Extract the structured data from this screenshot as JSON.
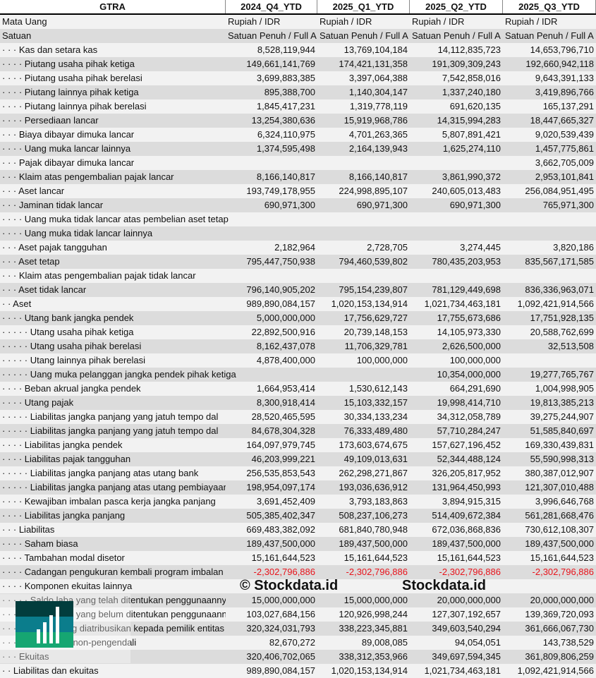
{
  "header": {
    "title": "GTRA",
    "columns": [
      "2024_Q4_YTD",
      "2025_Q1_YTD",
      "2025_Q2_YTD",
      "2025_Q3_YTD"
    ]
  },
  "meta_rows": [
    {
      "label": "Mata Uang",
      "values": [
        "Rupiah / IDR",
        "Rupiah / IDR",
        "Rupiah / IDR",
        "Rupiah / IDR"
      ]
    },
    {
      "label": "Satuan",
      "values": [
        "Satuan Penuh / Full A",
        "Satuan Penuh / Full A",
        "Satuan Penuh / Full A",
        "Satuan Penuh / Full A"
      ]
    }
  ],
  "rows": [
    {
      "label": "· · · Kas dan setara kas",
      "values": [
        "8,528,119,944",
        "13,769,104,184",
        "14,112,835,723",
        "14,653,796,710"
      ]
    },
    {
      "label": "· · · · Piutang usaha pihak ketiga",
      "values": [
        "149,661,141,769",
        "174,421,131,358",
        "191,309,309,243",
        "192,660,942,118"
      ]
    },
    {
      "label": "· · · · Piutang usaha pihak berelasi",
      "values": [
        "3,699,883,385",
        "3,397,064,388",
        "7,542,858,016",
        "9,643,391,133"
      ]
    },
    {
      "label": "· · · · Piutang lainnya pihak ketiga",
      "values": [
        "895,388,700",
        "1,140,304,147",
        "1,337,240,180",
        "3,419,896,766"
      ]
    },
    {
      "label": "· · · · Piutang lainnya pihak berelasi",
      "values": [
        "1,845,417,231",
        "1,319,778,119",
        "691,620,135",
        "165,137,291"
      ]
    },
    {
      "label": "· · · · Persediaan lancar",
      "values": [
        "13,254,380,636",
        "15,919,968,786",
        "14,315,994,283",
        "18,447,665,327"
      ]
    },
    {
      "label": "· · · Biaya dibayar dimuka lancar",
      "values": [
        "6,324,110,975",
        "4,701,263,365",
        "5,807,891,421",
        "9,020,539,439"
      ]
    },
    {
      "label": "· · · · Uang muka lancar lainnya",
      "values": [
        "1,374,595,498",
        "2,164,139,943",
        "1,625,274,110",
        "1,457,775,861"
      ]
    },
    {
      "label": "· · · Pajak dibayar dimuka lancar",
      "values": [
        "",
        "",
        "",
        "3,662,705,009"
      ]
    },
    {
      "label": "· · · Klaim atas pengembalian pajak lancar",
      "values": [
        "8,166,140,817",
        "8,166,140,817",
        "3,861,990,372",
        "2,953,101,841"
      ]
    },
    {
      "label": "· · · Aset lancar",
      "values": [
        "193,749,178,955",
        "224,998,895,107",
        "240,605,013,483",
        "256,084,951,495"
      ]
    },
    {
      "label": "· · · Jaminan tidak lancar",
      "values": [
        "690,971,300",
        "690,971,300",
        "690,971,300",
        "765,971,300"
      ]
    },
    {
      "label": "· · · · Uang muka tidak lancar atas pembelian aset tetap",
      "values": [
        "",
        "",
        "",
        ""
      ]
    },
    {
      "label": "· · · · Uang muka tidak lancar lainnya",
      "values": [
        "",
        "",
        "",
        ""
      ]
    },
    {
      "label": "· · · Aset pajak tangguhan",
      "values": [
        "2,182,964",
        "2,728,705",
        "3,274,445",
        "3,820,186"
      ]
    },
    {
      "label": "· · · Aset tetap",
      "values": [
        "795,447,750,938",
        "794,460,539,802",
        "780,435,203,953",
        "835,567,171,585"
      ]
    },
    {
      "label": "· · · Klaim atas pengembalian pajak tidak lancar",
      "values": [
        "",
        "",
        "",
        ""
      ]
    },
    {
      "label": "· · · Aset tidak lancar",
      "values": [
        "796,140,905,202",
        "795,154,239,807",
        "781,129,449,698",
        "836,336,963,071"
      ]
    },
    {
      "label": "· · Aset",
      "values": [
        "989,890,084,157",
        "1,020,153,134,914",
        "1,021,734,463,181",
        "1,092,421,914,566"
      ]
    },
    {
      "label": "· · · · Utang bank jangka pendek",
      "values": [
        "5,000,000,000",
        "17,756,629,727",
        "17,755,673,686",
        "17,751,928,135"
      ]
    },
    {
      "label": "· · · · · Utang usaha pihak ketiga",
      "values": [
        "22,892,500,916",
        "20,739,148,153",
        "14,105,973,330",
        "20,588,762,699"
      ]
    },
    {
      "label": "· · · · · Utang usaha pihak berelasi",
      "values": [
        "8,162,437,078",
        "11,706,329,781",
        "2,626,500,000",
        "32,513,508"
      ]
    },
    {
      "label": "· · · · · Utang lainnya pihak berelasi",
      "values": [
        "4,878,400,000",
        "100,000,000",
        "100,000,000",
        ""
      ]
    },
    {
      "label": "· · · · · Uang muka pelanggan jangka pendek pihak ketiga",
      "values": [
        "",
        "",
        "10,354,000,000",
        "19,277,765,767"
      ]
    },
    {
      "label": "· · · · Beban akrual jangka pendek",
      "values": [
        "1,664,953,414",
        "1,530,612,143",
        "664,291,690",
        "1,004,998,905"
      ]
    },
    {
      "label": "· · · · Utang pajak",
      "values": [
        "8,300,918,414",
        "15,103,332,157",
        "19,998,414,710",
        "19,813,385,213"
      ]
    },
    {
      "label": "· · · · · Liabilitas jangka panjang yang jatuh tempo dal",
      "values": [
        "28,520,465,595",
        "30,334,133,234",
        "34,312,058,789",
        "39,275,244,907"
      ]
    },
    {
      "label": "· · · · · Liabilitas jangka panjang yang jatuh tempo dal",
      "values": [
        "84,678,304,328",
        "76,333,489,480",
        "57,710,284,247",
        "51,585,840,697"
      ]
    },
    {
      "label": "· · · · Liabilitas jangka pendek",
      "values": [
        "164,097,979,745",
        "173,603,674,675",
        "157,627,196,452",
        "169,330,439,831"
      ]
    },
    {
      "label": "· · · · Liabilitas pajak tangguhan",
      "values": [
        "46,203,999,221",
        "49,109,013,631",
        "52,344,488,124",
        "55,590,998,313"
      ]
    },
    {
      "label": "· · · · · Liabilitas jangka panjang atas utang bank",
      "values": [
        "256,535,853,543",
        "262,298,271,867",
        "326,205,817,952",
        "380,387,012,907"
      ]
    },
    {
      "label": "· · · · · Liabilitas jangka panjang atas utang pembiayaan",
      "values": [
        "198,954,097,174",
        "193,036,636,912",
        "131,964,450,993",
        "121,307,010,488"
      ]
    },
    {
      "label": "· · · · Kewajiban imbalan pasca kerja jangka panjang",
      "values": [
        "3,691,452,409",
        "3,793,183,863",
        "3,894,915,315",
        "3,996,646,768"
      ]
    },
    {
      "label": "· · · · Liabilitas jangka panjang",
      "values": [
        "505,385,402,347",
        "508,237,106,273",
        "514,409,672,384",
        "561,281,668,476"
      ]
    },
    {
      "label": "· · · Liabilitas",
      "values": [
        "669,483,382,092",
        "681,840,780,948",
        "672,036,868,836",
        "730,612,108,307"
      ]
    },
    {
      "label": "· · · · Saham biasa",
      "values": [
        "189,437,500,000",
        "189,437,500,000",
        "189,437,500,000",
        "189,437,500,000"
      ]
    },
    {
      "label": "· · · · Tambahan modal disetor",
      "values": [
        "15,161,644,523",
        "15,161,644,523",
        "15,161,644,523",
        "15,161,644,523"
      ]
    },
    {
      "label": "· · · · Cadangan pengukuran kembali program imbalan",
      "values": [
        "-2,302,796,886",
        "-2,302,796,886",
        "-2,302,796,886",
        "-2,302,796,886"
      ]
    },
    {
      "label": "· · · · Komponen ekuitas lainnya",
      "values": [
        "",
        "",
        "",
        ""
      ]
    },
    {
      "label": "· · · · · Saldo laba yang telah ditentukan penggunaannya",
      "values": [
        "15,000,000,000",
        "15,000,000,000",
        "20,000,000,000",
        "20,000,000,000"
      ]
    },
    {
      "label": "· · · · · Saldo laba yang belum ditentukan penggunaannya",
      "values": [
        "103,027,684,156",
        "120,926,998,244",
        "127,307,192,657",
        "139,369,720,093"
      ]
    },
    {
      "label": "· · · · Ekuitas yang diatribusikan kepada pemilik entitas induk",
      "values": [
        "320,324,031,793",
        "338,223,345,881",
        "349,603,540,294",
        "361,666,067,730"
      ]
    },
    {
      "label": "· · · Kepentingan non-pengendali",
      "values": [
        "82,670,272",
        "89,008,085",
        "94,054,051",
        "143,738,529"
      ]
    },
    {
      "label": "· · · Ekuitas",
      "values": [
        "320,406,702,065",
        "338,312,353,966",
        "349,697,594,345",
        "361,809,806,259"
      ]
    },
    {
      "label": "· · Liabilitas dan ekuitas",
      "values": [
        "989,890,084,157",
        "1,020,153,134,914",
        "1,021,734,463,181",
        "1,092,421,914,566"
      ]
    }
  ],
  "watermark": {
    "copyright": "© Stockdata.id",
    "brand": "Stockdata.id"
  },
  "colors": {
    "negative": "#e8131b",
    "row_light": "#f2f2f2",
    "row_dark": "#dcdcdc",
    "logo_dark": "#023d3d",
    "logo_mid": "#0b7d8c",
    "logo_green": "#16a672"
  }
}
